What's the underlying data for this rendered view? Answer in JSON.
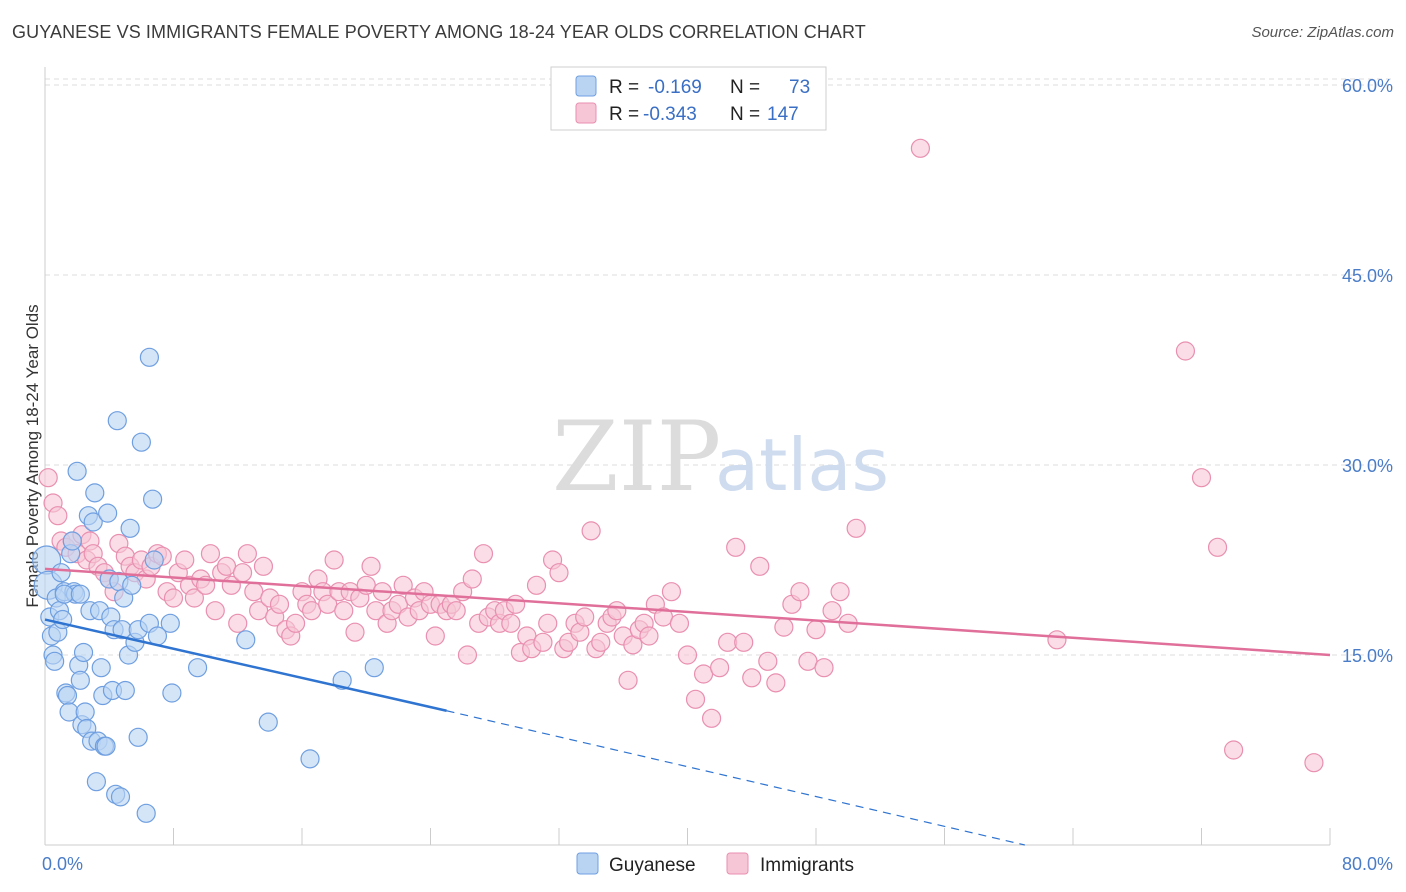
{
  "title": "GUYANESE VS IMMIGRANTS FEMALE POVERTY AMONG 18-24 YEAR OLDS CORRELATION CHART",
  "source": "Source: ZipAtlas.com",
  "watermark": {
    "zip": "ZIP",
    "atlas": "atlas"
  },
  "colors": {
    "guyanese_fill": "#b9d3f3",
    "guyanese_stroke": "#6f9fe0",
    "guyanese_line": "#2f74d0",
    "immigrants_fill": "#f7c6d6",
    "immigrants_stroke": "#e98fb0",
    "immigrants_line": "#e0709a",
    "tick": "#4a7cc7",
    "grid": "#dddddd"
  },
  "legend": {
    "rows": [
      {
        "r_label": "R =",
        "r_value": "-0.169",
        "n_label": "N =",
        "n_value": "73"
      },
      {
        "r_label": "R =",
        "r_value": "-0.343",
        "n_label": "N =",
        "n_value": "147"
      }
    ]
  },
  "bottom_legend": [
    "Guyanese",
    "Immigrants"
  ],
  "chart_data": {
    "type": "scatter",
    "title": "GUYANESE VS IMMIGRANTS FEMALE POVERTY AMONG 18-24 YEAR OLDS CORRELATION CHART",
    "ylabel": "Female Poverty Among 18-24 Year Olds",
    "xlabel": "",
    "xlim": [
      0,
      80
    ],
    "ylim": [
      0,
      60
    ],
    "x_tick_labels": [
      "0.0%",
      "80.0%"
    ],
    "y_ticks": [
      15,
      30,
      45,
      60
    ],
    "y_tick_labels": [
      "15.0%",
      "30.0%",
      "45.0%",
      "60.0%"
    ],
    "grid": "horizontal dashed",
    "legend_position": "top-center",
    "series": [
      {
        "name": "Guyanese",
        "R": -0.169,
        "N": 73,
        "trend": {
          "x0": 0,
          "y0": 17.8,
          "x1": 25,
          "y1": 10.6,
          "dashed_to_x": 61,
          "dashed_to_y": 0
        },
        "points": [
          [
            0.1,
            22.5
          ],
          [
            0.2,
            20.5
          ],
          [
            0.3,
            18
          ],
          [
            0.4,
            16.5
          ],
          [
            0.5,
            15
          ],
          [
            0.6,
            14.5
          ],
          [
            0.7,
            19.5
          ],
          [
            0.8,
            16.8
          ],
          [
            0.9,
            18.5
          ],
          [
            1.0,
            21.5
          ],
          [
            1.1,
            17.8
          ],
          [
            1.2,
            20
          ],
          [
            1.3,
            12
          ],
          [
            1.4,
            11.8
          ],
          [
            1.5,
            10.5
          ],
          [
            1.6,
            23
          ],
          [
            1.7,
            24
          ],
          [
            1.8,
            20
          ],
          [
            1.9,
            19.8
          ],
          [
            2.0,
            29.5
          ],
          [
            2.1,
            14.2
          ],
          [
            2.2,
            13
          ],
          [
            2.3,
            9.5
          ],
          [
            2.4,
            15.2
          ],
          [
            2.5,
            10.5
          ],
          [
            2.6,
            9.2
          ],
          [
            2.7,
            26
          ],
          [
            2.8,
            18.5
          ],
          [
            2.9,
            8.2
          ],
          [
            3.0,
            25.5
          ],
          [
            3.1,
            27.8
          ],
          [
            3.2,
            5
          ],
          [
            3.3,
            8.2
          ],
          [
            3.4,
            18.5
          ],
          [
            3.5,
            14
          ],
          [
            3.6,
            11.8
          ],
          [
            3.7,
            7.8
          ],
          [
            3.8,
            7.8
          ],
          [
            3.9,
            26.2
          ],
          [
            4.0,
            21
          ],
          [
            4.1,
            18
          ],
          [
            4.2,
            12.2
          ],
          [
            4.3,
            17
          ],
          [
            4.4,
            4
          ],
          [
            4.5,
            33.5
          ],
          [
            4.6,
            20.8
          ],
          [
            4.7,
            3.8
          ],
          [
            4.8,
            17
          ],
          [
            4.9,
            19.5
          ],
          [
            5.0,
            12.2
          ],
          [
            5.2,
            15
          ],
          [
            5.3,
            25
          ],
          [
            5.4,
            20.5
          ],
          [
            5.6,
            16
          ],
          [
            5.8,
            17
          ],
          [
            5.8,
            8.5
          ],
          [
            6.0,
            31.8
          ],
          [
            6.3,
            2.5
          ],
          [
            6.5,
            17.5
          ],
          [
            6.5,
            38.5
          ],
          [
            6.7,
            27.3
          ],
          [
            6.8,
            22.5
          ],
          [
            7.0,
            16.5
          ],
          [
            7.8,
            17.5
          ],
          [
            7.9,
            12
          ],
          [
            9.5,
            14
          ],
          [
            12.5,
            16.2
          ],
          [
            13.9,
            9.7
          ],
          [
            16.5,
            6.8
          ],
          [
            18.5,
            13
          ],
          [
            20.5,
            14
          ],
          [
            1.2,
            19.8
          ],
          [
            2.2,
            19.8
          ]
        ]
      },
      {
        "name": "Immigrants",
        "R": -0.343,
        "N": 147,
        "trend": {
          "x0": 0,
          "y0": 21.8,
          "x1": 80,
          "y1": 15
        },
        "points": [
          [
            0.2,
            29
          ],
          [
            0.5,
            27
          ],
          [
            0.8,
            26
          ],
          [
            1.0,
            24
          ],
          [
            1.3,
            23.5
          ],
          [
            1.7,
            24
          ],
          [
            2.0,
            23
          ],
          [
            2.3,
            24.5
          ],
          [
            2.6,
            22.5
          ],
          [
            2.8,
            24
          ],
          [
            3.0,
            23
          ],
          [
            3.3,
            22
          ],
          [
            3.7,
            21.5
          ],
          [
            4.0,
            21
          ],
          [
            4.3,
            20
          ],
          [
            4.6,
            23.8
          ],
          [
            5.0,
            22.8
          ],
          [
            5.3,
            22
          ],
          [
            5.6,
            21.5
          ],
          [
            6.0,
            22.5
          ],
          [
            6.3,
            21
          ],
          [
            6.6,
            22
          ],
          [
            7.0,
            23
          ],
          [
            7.3,
            22.8
          ],
          [
            7.6,
            20
          ],
          [
            8.0,
            19.5
          ],
          [
            8.3,
            21.5
          ],
          [
            8.7,
            22.5
          ],
          [
            9.0,
            20.5
          ],
          [
            9.3,
            19.5
          ],
          [
            9.7,
            21
          ],
          [
            10,
            20.5
          ],
          [
            10.3,
            23
          ],
          [
            10.6,
            18.5
          ],
          [
            11,
            21.5
          ],
          [
            11.3,
            22
          ],
          [
            11.6,
            20.5
          ],
          [
            12,
            17.5
          ],
          [
            12.3,
            21.5
          ],
          [
            12.6,
            23
          ],
          [
            13,
            20
          ],
          [
            13.3,
            18.5
          ],
          [
            13.6,
            22
          ],
          [
            14,
            19.5
          ],
          [
            14.3,
            18
          ],
          [
            14.6,
            19
          ],
          [
            15,
            17
          ],
          [
            15.3,
            16.5
          ],
          [
            15.6,
            17.5
          ],
          [
            16,
            20
          ],
          [
            16.3,
            19
          ],
          [
            16.6,
            18.5
          ],
          [
            17,
            21
          ],
          [
            17.3,
            20
          ],
          [
            17.6,
            19
          ],
          [
            18,
            22.5
          ],
          [
            18.3,
            20
          ],
          [
            18.6,
            18.5
          ],
          [
            19,
            20
          ],
          [
            19.3,
            16.8
          ],
          [
            19.6,
            19.5
          ],
          [
            20,
            20.5
          ],
          [
            20.3,
            22
          ],
          [
            20.6,
            18.5
          ],
          [
            21,
            20
          ],
          [
            21.3,
            17.5
          ],
          [
            21.6,
            18.5
          ],
          [
            22,
            19
          ],
          [
            22.3,
            20.5
          ],
          [
            22.6,
            18
          ],
          [
            23,
            19.5
          ],
          [
            23.3,
            18.5
          ],
          [
            23.6,
            20
          ],
          [
            24,
            19
          ],
          [
            24.3,
            16.5
          ],
          [
            24.6,
            19
          ],
          [
            25,
            18.5
          ],
          [
            25.3,
            19
          ],
          [
            25.6,
            18.5
          ],
          [
            26,
            20
          ],
          [
            26.3,
            15
          ],
          [
            26.6,
            21
          ],
          [
            27,
            17.5
          ],
          [
            27.3,
            23
          ],
          [
            27.6,
            18
          ],
          [
            28,
            18.5
          ],
          [
            28.3,
            17.5
          ],
          [
            28.6,
            18.5
          ],
          [
            29,
            17.5
          ],
          [
            29.3,
            19
          ],
          [
            29.6,
            15.2
          ],
          [
            30,
            16.5
          ],
          [
            30.3,
            15.5
          ],
          [
            30.6,
            20.5
          ],
          [
            31,
            16
          ],
          [
            31.3,
            17.5
          ],
          [
            31.6,
            22.5
          ],
          [
            32,
            21.5
          ],
          [
            32.3,
            15.5
          ],
          [
            32.6,
            16
          ],
          [
            33,
            17.5
          ],
          [
            33.3,
            16.8
          ],
          [
            33.6,
            18
          ],
          [
            34,
            24.8
          ],
          [
            34.3,
            15.5
          ],
          [
            34.6,
            16
          ],
          [
            35,
            17.5
          ],
          [
            35.3,
            18
          ],
          [
            35.6,
            18.5
          ],
          [
            36,
            16.5
          ],
          [
            36.3,
            13
          ],
          [
            36.6,
            15.8
          ],
          [
            37,
            17
          ],
          [
            37.3,
            17.5
          ],
          [
            37.6,
            16.5
          ],
          [
            38,
            19
          ],
          [
            38.5,
            18
          ],
          [
            39,
            20
          ],
          [
            39.5,
            17.5
          ],
          [
            40,
            15
          ],
          [
            40.5,
            11.5
          ],
          [
            41,
            13.5
          ],
          [
            41.5,
            10
          ],
          [
            42,
            14
          ],
          [
            42.5,
            16
          ],
          [
            43,
            23.5
          ],
          [
            43.5,
            16
          ],
          [
            44,
            13.2
          ],
          [
            44.5,
            22
          ],
          [
            45,
            14.5
          ],
          [
            45.5,
            12.8
          ],
          [
            46,
            17.2
          ],
          [
            46.5,
            19
          ],
          [
            47,
            20
          ],
          [
            47.5,
            14.5
          ],
          [
            48,
            17
          ],
          [
            48.5,
            14
          ],
          [
            49,
            18.5
          ],
          [
            49.5,
            20
          ],
          [
            50,
            17.5
          ],
          [
            50.5,
            25
          ],
          [
            54.5,
            55
          ],
          [
            63,
            16.2
          ],
          [
            71,
            39
          ],
          [
            72,
            29
          ],
          [
            73,
            23.5
          ],
          [
            74,
            7.5
          ],
          [
            79,
            6.5
          ]
        ]
      }
    ]
  }
}
